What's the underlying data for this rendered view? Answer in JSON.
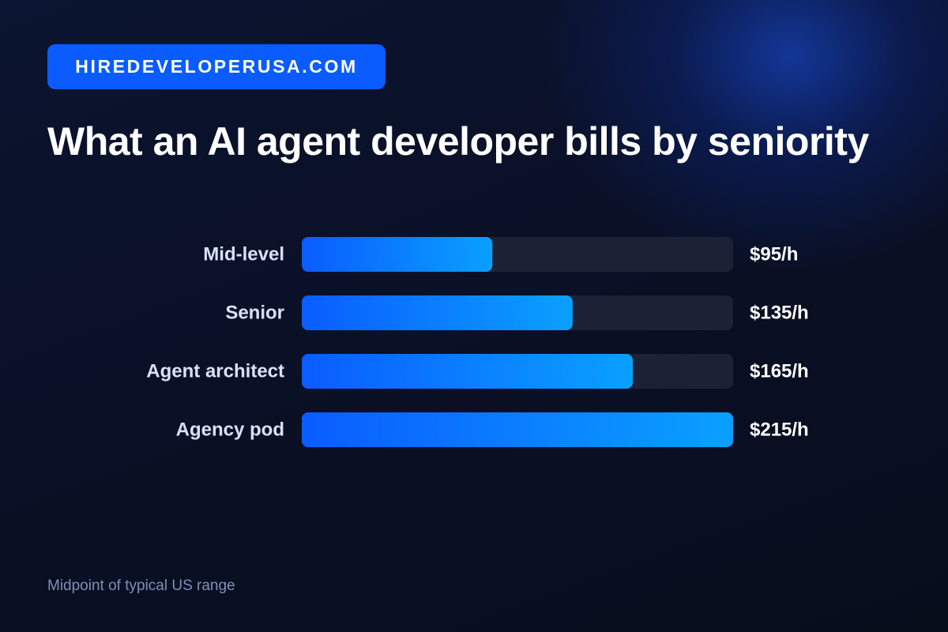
{
  "brand": {
    "label": "HIREDEVELOPERUSA.COM",
    "color": "#0a5cff"
  },
  "title": "What an AI agent developer bills by seniority",
  "chart_data": {
    "type": "bar",
    "orientation": "horizontal",
    "title": "What an AI agent developer bills by seniority",
    "categories": [
      "Mid-level",
      "Senior",
      "Agent architect",
      "Agency pod"
    ],
    "values": [
      95,
      135,
      165,
      215
    ],
    "value_labels": [
      "$95/h",
      "$135/h",
      "$165/h",
      "$215/h"
    ],
    "unit": "$/h",
    "xlim": [
      0,
      215
    ],
    "grid": false,
    "legend": "none",
    "colors": {
      "bar_start": "#0a5cff",
      "bar_end": "#0aa0ff",
      "track": "#1b2236",
      "category_label": "#d9e2f5",
      "value_label": "#ffffff"
    }
  },
  "footnote": "Midpoint of typical US range"
}
